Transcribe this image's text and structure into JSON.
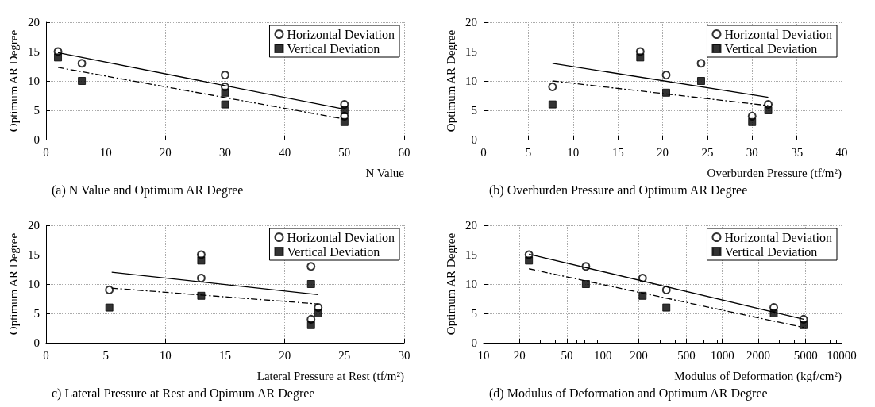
{
  "chart_data": [
    {
      "type": "scatter",
      "title": "(a) N Value and Optimum AR Degree",
      "xlabel": "N Value",
      "ylabel": "Optimum AR Degree",
      "xlim": [
        0,
        60
      ],
      "xticks": [
        0,
        10,
        20,
        30,
        40,
        50,
        60
      ],
      "ylim": [
        0,
        20
      ],
      "yticks": [
        0,
        5,
        10,
        15,
        20
      ],
      "grid": true,
      "legend": "top right",
      "series": [
        {
          "name": "Horizontal Deviation",
          "color": "#000000",
          "marker": "circle",
          "x": [
            2,
            6,
            30,
            30,
            50,
            50
          ],
          "values": [
            15,
            13,
            11,
            9,
            6,
            4
          ]
        },
        {
          "name": "Vertical Deviation",
          "color": "#000000",
          "marker": "square",
          "x": [
            2,
            6,
            30,
            30,
            50,
            50
          ],
          "values": [
            14,
            10,
            8,
            6,
            5,
            3
          ]
        },
        {
          "type": "line",
          "color": "#000000",
          "marker": "none",
          "line_style": "solid",
          "x": [
            2,
            50
          ],
          "values": [
            14.8,
            5.2
          ]
        },
        {
          "type": "line",
          "color": "#000000",
          "marker": "none",
          "line_style": "dashed",
          "x": [
            2,
            50
          ],
          "values": [
            12.3,
            3.5
          ]
        }
      ]
    },
    {
      "type": "scatter",
      "title": "(b) Overburden Pressure and Optimum AR Degree",
      "xlabel": "Overburden Pressure (tf/m²)",
      "ylabel": "Optimum AR Degree",
      "xlim": [
        0,
        40
      ],
      "xticks": [
        0,
        5,
        10,
        15,
        20,
        25,
        30,
        35,
        40
      ],
      "ylim": [
        0,
        20
      ],
      "yticks": [
        0,
        5,
        10,
        15,
        20
      ],
      "grid": true,
      "legend": "top right",
      "series": [
        {
          "name": "Horizontal Deviation",
          "color": "#000000",
          "marker": "circle",
          "x": [
            7.7,
            17.5,
            20.4,
            24.3,
            30,
            31.8
          ],
          "values": [
            9,
            15,
            11,
            13,
            4,
            6
          ]
        },
        {
          "name": "Vertical Deviation",
          "color": "#000000",
          "marker": "square",
          "x": [
            7.7,
            17.5,
            20.4,
            24.3,
            30,
            31.8
          ],
          "values": [
            6,
            14,
            8,
            10,
            3,
            5
          ]
        },
        {
          "type": "line",
          "color": "#000000",
          "marker": "none",
          "line_style": "solid",
          "x": [
            7.7,
            31.8
          ],
          "values": [
            13,
            7.2
          ]
        },
        {
          "type": "line",
          "color": "#000000",
          "marker": "none",
          "line_style": "dashed",
          "x": [
            7.7,
            31.8
          ],
          "values": [
            10,
            5.8
          ]
        }
      ]
    },
    {
      "type": "scatter",
      "title": "c) Lateral Pressure at Rest and Opimum AR Degree",
      "xlabel": "Lateral Pressure at Rest (tf/m²)",
      "ylabel": "Optimum AR Degree",
      "xlim": [
        0,
        30
      ],
      "xticks": [
        0,
        5,
        10,
        15,
        20,
        25,
        30
      ],
      "ylim": [
        0,
        20
      ],
      "yticks": [
        0,
        5,
        10,
        15,
        20
      ],
      "grid": true,
      "legend": "top right",
      "series": [
        {
          "name": "Horizontal Deviation",
          "color": "#000000",
          "marker": "circle",
          "x": [
            5.3,
            13,
            13,
            22.2,
            22.2,
            22.8
          ],
          "values": [
            9,
            15,
            11,
            13,
            4,
            6
          ]
        },
        {
          "name": "Vertical Deviation",
          "color": "#000000",
          "marker": "square",
          "x": [
            5.3,
            13,
            13,
            22.2,
            22.2,
            22.8
          ],
          "values": [
            6,
            14,
            8,
            10,
            3,
            5
          ]
        },
        {
          "type": "line",
          "color": "#000000",
          "marker": "none",
          "line_style": "solid",
          "x": [
            5.5,
            22.8
          ],
          "values": [
            12,
            8.2
          ]
        },
        {
          "type": "line",
          "color": "#000000",
          "marker": "none",
          "line_style": "dashed",
          "x": [
            5.5,
            22.8
          ],
          "values": [
            9.3,
            6.6
          ]
        }
      ]
    },
    {
      "type": "scatter",
      "title": "(d) Modulus of Deformation and Optimum AR Degree",
      "xlabel": "Modulus of Deformation (kgf/cm²)",
      "ylabel": "Optimum AR Degree",
      "log": "x",
      "xlim": [
        10,
        10000
      ],
      "xticks": [
        10,
        20,
        50,
        100,
        200,
        500,
        1000,
        2000,
        5000,
        10000
      ],
      "ylim": [
        0,
        20
      ],
      "yticks": [
        0,
        5,
        10,
        15,
        20
      ],
      "grid": true,
      "legend": "top right",
      "series": [
        {
          "name": "Horizontal Deviation",
          "color": "#000000",
          "marker": "circle",
          "x": [
            24,
            72,
            215,
            340,
            2700,
            4800
          ],
          "values": [
            15,
            13,
            11,
            9,
            6,
            4
          ]
        },
        {
          "name": "Vertical Deviation",
          "color": "#000000",
          "marker": "square",
          "x": [
            24,
            72,
            215,
            340,
            2700,
            4800
          ],
          "values": [
            14,
            10,
            8,
            6,
            5,
            3
          ]
        },
        {
          "type": "line",
          "color": "#000000",
          "marker": "none",
          "line_style": "solid",
          "x": [
            24,
            4800
          ],
          "values": [
            15.1,
            4.0
          ]
        },
        {
          "type": "line",
          "color": "#000000",
          "marker": "none",
          "line_style": "dashed",
          "x": [
            24,
            4800
          ],
          "values": [
            12.6,
            2.6
          ]
        }
      ]
    }
  ]
}
